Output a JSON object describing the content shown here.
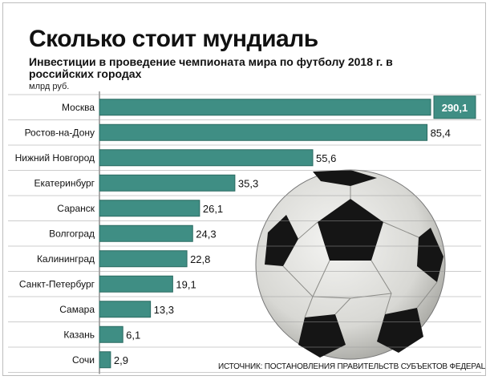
{
  "header": {
    "title": "Сколько стоит мундиаль",
    "subtitle": "Инвестиции в проведение чемпионата мира по футболу 2018 г. в российских городах",
    "unit": "млрд руб."
  },
  "footer": {
    "source": "ИСТОЧНИК: ПОСТАНОВЛЕНИЯ ПРАВИТЕЛЬСТВ СУБЪЕКТОВ ФЕДЕРАЦИИ"
  },
  "colors": {
    "bar": "#3f8e84",
    "bar_edge": "#2a6a61",
    "gridline": "#9a9a9a",
    "axis": "#555555"
  },
  "chart_data": {
    "type": "bar",
    "orientation": "horizontal",
    "title": "Сколько стоит мундиаль",
    "subtitle": "Инвестиции в проведение чемпионата мира по футболу 2018 г. в российских городах",
    "ylabel": "млрд руб.",
    "categories": [
      "Москва",
      "Ростов-на-Дону",
      "Нижний Новгород",
      "Екатеринбург",
      "Саранск",
      "Волгоград",
      "Калининград",
      "Санкт-Петербург",
      "Самара",
      "Казань",
      "Сочи"
    ],
    "values": [
      290.1,
      85.4,
      55.6,
      35.3,
      26.1,
      24.3,
      22.8,
      19.1,
      13.3,
      6.1,
      2.9
    ],
    "value_labels": [
      "290,1",
      "85,4",
      "55,6",
      "35,3",
      "26,1",
      "24,3",
      "22,8",
      "19,1",
      "13,3",
      "6,1",
      "2,9"
    ],
    "axis_break": "first bar truncated",
    "grid": true
  }
}
